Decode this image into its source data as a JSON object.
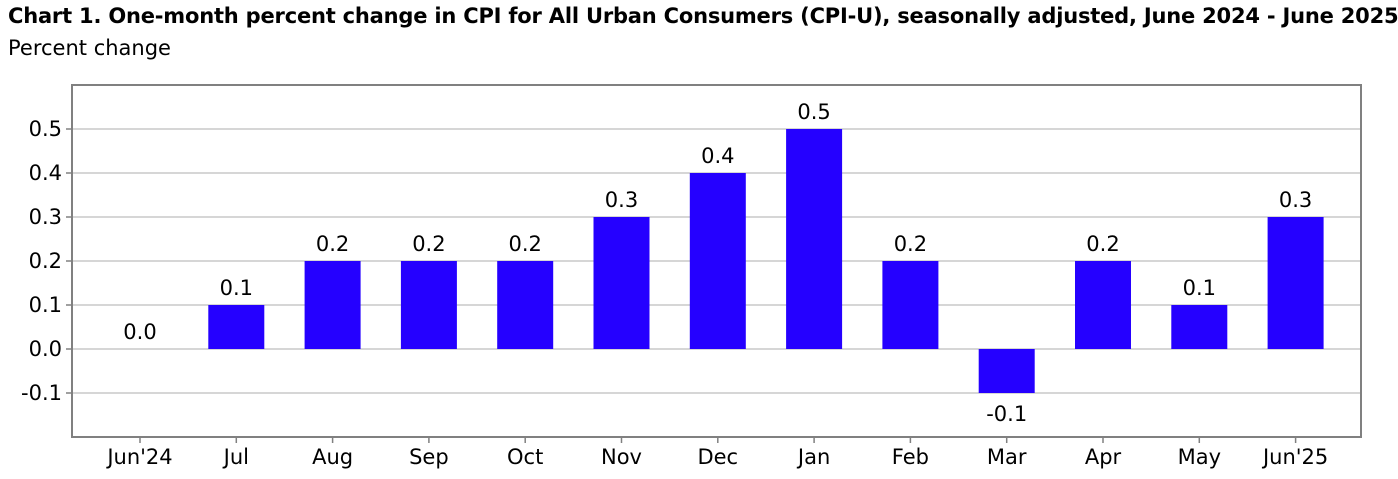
{
  "chart_data": {
    "type": "bar",
    "title": "Chart 1. One-month percent change in CPI for All Urban Consumers (CPI-U), seasonally adjusted, June 2024 - June 2025",
    "subtitle": "Percent change",
    "categories": [
      "Jun'24",
      "Jul",
      "Aug",
      "Sep",
      "Oct",
      "Nov",
      "Dec",
      "Jan",
      "Feb",
      "Mar",
      "Apr",
      "May",
      "Jun'25"
    ],
    "values": [
      0.0,
      0.1,
      0.2,
      0.2,
      0.2,
      0.3,
      0.4,
      0.5,
      0.2,
      -0.1,
      0.2,
      0.1,
      0.3
    ],
    "data_labels": [
      "0.0",
      "0.1",
      "0.2",
      "0.2",
      "0.2",
      "0.3",
      "0.4",
      "0.5",
      "0.2",
      "-0.1",
      "0.2",
      "0.1",
      "0.3"
    ],
    "yticks": [
      -0.1,
      0.0,
      0.1,
      0.2,
      0.3,
      0.4,
      0.5
    ],
    "ytick_labels": [
      "-0.1",
      "0.0",
      "0.1",
      "0.2",
      "0.3",
      "0.4",
      "0.5"
    ],
    "ylim": [
      -0.2,
      0.6
    ],
    "grid": true,
    "legend": "none",
    "bar_color": "#2500ff",
    "grid_color": "#c8c8c8",
    "frame_color": "#808080"
  }
}
